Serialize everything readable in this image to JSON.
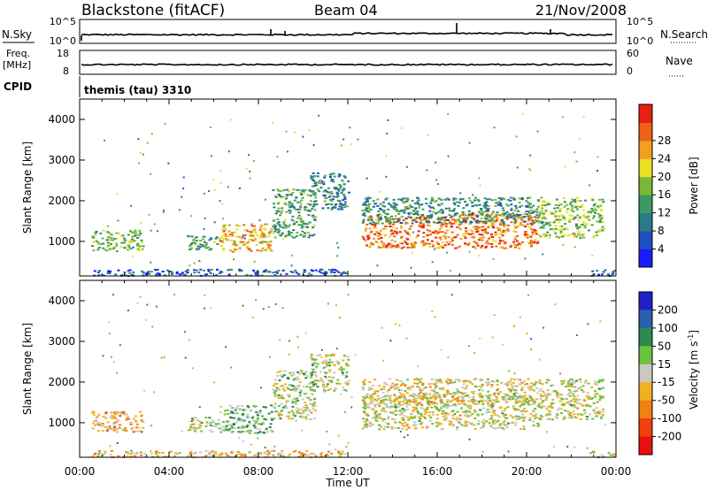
{
  "header": {
    "title": "Blackstone (fitACF)",
    "beam": "Beam 04",
    "date": "21/Nov/2008"
  },
  "noise_panel": {
    "left_label": "N.Sky",
    "right_label": "N.Search",
    "left_ticks": [
      "10^5",
      "10^0"
    ],
    "right_ticks": [
      "10^5",
      "10^0"
    ]
  },
  "freq_panel": {
    "left_label_1": "Freq.",
    "left_label_2": "[MHz]",
    "right_label": "Nave",
    "left_ticks": [
      "18",
      "8"
    ],
    "right_ticks": [
      "60",
      "0"
    ]
  },
  "cpid": {
    "label": "CPID",
    "value": "themis (tau) 3310"
  },
  "chart_data": [
    {
      "type": "heatmap",
      "panel": "power",
      "ylabel": "Slant Range [km]",
      "yticks": [
        1000,
        2000,
        3000,
        4000
      ],
      "ylim": [
        150,
        4500
      ],
      "xlim_hours": [
        0,
        24
      ],
      "colorbar": {
        "label": "Power [dB]",
        "ticks": [
          "4",
          "8",
          "12",
          "16",
          "20",
          "24",
          "28"
        ],
        "colors": [
          "#1a1aff",
          "#2050c0",
          "#2a7a8a",
          "#3a9a60",
          "#78b838",
          "#e8e020",
          "#f0a020",
          "#f06018",
          "#e82010"
        ]
      },
      "regions": [
        {
          "t0": 0.5,
          "t1": 2.8,
          "r0": 780,
          "r1": 1300,
          "level": 0.45
        },
        {
          "t0": 4.8,
          "t1": 6.2,
          "r0": 780,
          "r1": 1150,
          "level": 0.4
        },
        {
          "t0": 6.2,
          "t1": 8.6,
          "r0": 760,
          "r1": 1450,
          "level": 0.7
        },
        {
          "t0": 8.6,
          "t1": 10.5,
          "r0": 1100,
          "r1": 2300,
          "level": 0.4
        },
        {
          "t0": 10.3,
          "t1": 12.0,
          "r0": 1800,
          "r1": 2700,
          "level": 0.3
        },
        {
          "t0": 12.6,
          "t1": 20.5,
          "r0": 850,
          "r1": 1700,
          "level": 0.8
        },
        {
          "t0": 12.6,
          "t1": 20.5,
          "r0": 1450,
          "r1": 2100,
          "level": 0.35
        },
        {
          "t0": 20.5,
          "t1": 23.4,
          "r0": 1100,
          "r1": 2100,
          "level": 0.5
        },
        {
          "t0": 22.8,
          "t1": 23.9,
          "r0": 170,
          "r1": 320,
          "level": 0.2
        },
        {
          "t0": 0.5,
          "t1": 12.0,
          "r0": 170,
          "r1": 330,
          "level": 0.2
        }
      ]
    },
    {
      "type": "heatmap",
      "panel": "velocity",
      "ylabel": "Slant Range [km]",
      "xlabel": "Time UT",
      "yticks": [
        1000,
        2000,
        3000,
        4000
      ],
      "ylim": [
        150,
        4500
      ],
      "xlim_hours": [
        0,
        24
      ],
      "xticks": [
        "00:00",
        "04:00",
        "08:00",
        "12:00",
        "16:00",
        "20:00",
        "00:00"
      ],
      "colorbar": {
        "label": "Velocity [m s",
        "label_superscript": "-1",
        "label_close": "]",
        "ticks": [
          "200",
          "100",
          "50",
          "15",
          "-15",
          "-50",
          "-100",
          "-200"
        ],
        "colors": [
          "#2020c8",
          "#2a60b0",
          "#2f8a50",
          "#6cc040",
          "#c8c8c0",
          "#f0b020",
          "#f08010",
          "#f04010",
          "#e81010"
        ]
      },
      "regions": [
        {
          "t0": 0.5,
          "t1": 2.8,
          "r0": 780,
          "r1": 1300,
          "level": 0.62
        },
        {
          "t0": 4.8,
          "t1": 6.2,
          "r0": 780,
          "r1": 1150,
          "level": 0.48
        },
        {
          "t0": 6.2,
          "t1": 8.6,
          "r0": 760,
          "r1": 1450,
          "level": 0.36
        },
        {
          "t0": 8.6,
          "t1": 10.5,
          "r0": 1100,
          "r1": 2300,
          "level": 0.46
        },
        {
          "t0": 10.3,
          "t1": 12.0,
          "r0": 1800,
          "r1": 2700,
          "level": 0.48
        },
        {
          "t0": 12.6,
          "t1": 20.5,
          "r0": 850,
          "r1": 1700,
          "level": 0.5
        },
        {
          "t0": 12.6,
          "t1": 20.5,
          "r0": 1450,
          "r1": 2100,
          "level": 0.55
        },
        {
          "t0": 20.5,
          "t1": 23.4,
          "r0": 1100,
          "r1": 2100,
          "level": 0.5
        },
        {
          "t0": 22.8,
          "t1": 23.9,
          "r0": 170,
          "r1": 320,
          "level": 0.5
        },
        {
          "t0": 0.5,
          "t1": 12.0,
          "r0": 170,
          "r1": 330,
          "level": 0.6
        }
      ]
    }
  ]
}
